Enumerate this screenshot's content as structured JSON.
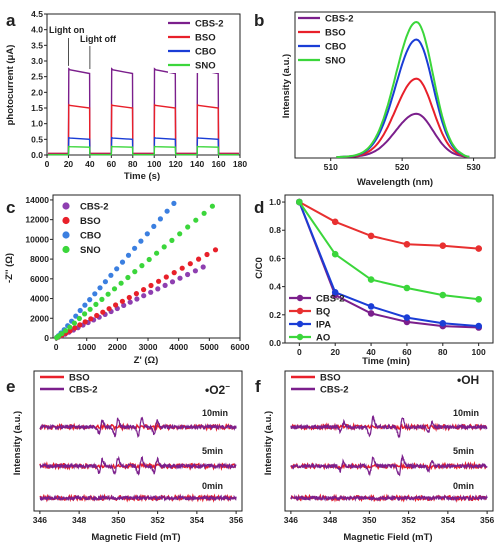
{
  "colors": {
    "CBS-2": "#7b1f8c",
    "BSO": "#e8202a",
    "CBO": "#1a3dd6",
    "SNO": "#3bd63b",
    "cbs_dot": "#8e3fb0",
    "cbo_dot": "#3b7fe0",
    "bq": "#e83030",
    "ipa": "#1a3dd6",
    "ao": "#3bd63b"
  },
  "chart_data": [
    {
      "panel": "a",
      "type": "line",
      "xlabel": "Time (s)",
      "ylabel": "photocurrent (μA)",
      "xlim": [
        0,
        180
      ],
      "ylim": [
        0,
        4.5
      ],
      "xticks": [
        "0",
        "20",
        "40",
        "60",
        "80",
        "100",
        "120",
        "140",
        "160",
        "180"
      ],
      "yticks": [
        "0.0",
        "0.5",
        "1.0",
        "1.5",
        "2.0",
        "2.5",
        "3.0",
        "3.5",
        "4.0",
        "4.5"
      ],
      "annotations": [
        "Light on",
        "Light off"
      ],
      "on_intervals": [
        [
          20,
          40
        ],
        [
          60,
          80
        ],
        [
          100,
          120
        ],
        [
          140,
          160
        ]
      ],
      "series": [
        {
          "name": "CBS-2",
          "off": 0.05,
          "on_start": 2.75,
          "on_end": 2.6
        },
        {
          "name": "BSO",
          "off": 0.05,
          "on_start": 1.6,
          "on_end": 1.5
        },
        {
          "name": "CBO",
          "off": 0.02,
          "on_start": 0.55,
          "on_end": 0.5
        },
        {
          "name": "SNO",
          "off": 0.01,
          "on_start": 0.27,
          "on_end": 0.25
        }
      ]
    },
    {
      "panel": "b",
      "type": "line",
      "xlabel": "Wavelength (nm)",
      "ylabel": "Intensity (a.u.)",
      "xlim": [
        505,
        533
      ],
      "xticks": [
        "510",
        "520",
        "530"
      ],
      "peak": 522,
      "series": [
        {
          "name": "CBS-2",
          "peak_rel": 0.32
        },
        {
          "name": "BSO",
          "peak_rel": 0.58
        },
        {
          "name": "CBO",
          "peak_rel": 0.87
        },
        {
          "name": "SNO",
          "peak_rel": 1.0
        }
      ]
    },
    {
      "panel": "c",
      "type": "scatter",
      "xlabel": "Z' (Ω)",
      "ylabel": "-Z'' (Ω)",
      "xlim": [
        -100,
        6000
      ],
      "ylim": [
        0,
        14500
      ],
      "xticks": [
        "0",
        "1000",
        "2000",
        "3000",
        "4000",
        "5000",
        "6000"
      ],
      "yticks": [
        "0",
        "2000",
        "4000",
        "6000",
        "8000",
        "10000",
        "12000",
        "14000"
      ],
      "series": [
        {
          "name": "CBS-2",
          "slope": 1.5,
          "xmax": 4800
        },
        {
          "name": "BSO",
          "slope": 1.72,
          "xmax": 5200
        },
        {
          "name": "CBO",
          "slope": 3.55,
          "xmax": 4300
        },
        {
          "name": "SNO",
          "slope": 2.62,
          "xmax": 5100
        }
      ]
    },
    {
      "panel": "d",
      "type": "line",
      "xlabel": "Time (min)",
      "ylabel": "C/C0",
      "xlim": [
        -8,
        108
      ],
      "ylim": [
        0,
        1.05
      ],
      "xticks": [
        "0",
        "20",
        "40",
        "60",
        "80",
        "100"
      ],
      "yticks": [
        "0.0",
        "0.2",
        "0.4",
        "0.6",
        "0.8",
        "1.0"
      ],
      "x": [
        0,
        20,
        40,
        60,
        80,
        100
      ],
      "series": [
        {
          "name": "CBS-2",
          "values": [
            1.0,
            0.34,
            0.21,
            0.15,
            0.12,
            0.11
          ]
        },
        {
          "name": "BQ",
          "values": [
            1.0,
            0.86,
            0.76,
            0.7,
            0.69,
            0.67
          ]
        },
        {
          "name": "IPA",
          "values": [
            1.0,
            0.36,
            0.26,
            0.18,
            0.14,
            0.12
          ]
        },
        {
          "name": "AO",
          "values": [
            1.0,
            0.63,
            0.45,
            0.39,
            0.34,
            0.31
          ]
        }
      ]
    },
    {
      "panel": "e",
      "type": "line",
      "radical": "•O2",
      "radical_sub": "−",
      "xlabel": "Magnetic Field (mT)",
      "ylabel": "Intensity (a.u.)",
      "xlim": [
        345.7,
        356.3
      ],
      "xticks": [
        "346",
        "348",
        "350",
        "352",
        "354",
        "356"
      ],
      "traces": [
        "10min",
        "5min",
        "0min"
      ],
      "series": [
        {
          "name": "BSO"
        },
        {
          "name": "CBS-2"
        }
      ]
    },
    {
      "panel": "f",
      "type": "line",
      "radical": "•OH",
      "xlabel": "Magnetic Field (mT)",
      "ylabel": "Intensity (a.u.)",
      "xlim": [
        345.7,
        356.3
      ],
      "xticks": [
        "346",
        "348",
        "350",
        "352",
        "354",
        "356"
      ],
      "traces": [
        "10min",
        "5min",
        "0min"
      ],
      "series": [
        {
          "name": "BSO"
        },
        {
          "name": "CBS-2"
        }
      ]
    }
  ]
}
